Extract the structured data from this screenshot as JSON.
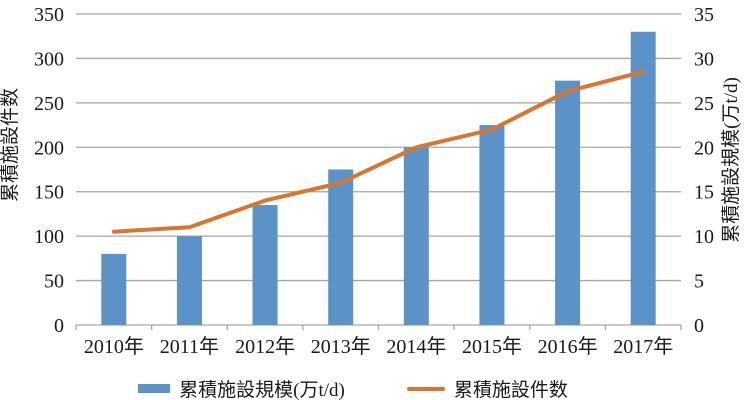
{
  "chart_data": {
    "type": "combo-bar-line",
    "title": "",
    "categories": [
      "2010年",
      "2011年",
      "2012年",
      "2013年",
      "2014年",
      "2015年",
      "2016年",
      "2017年"
    ],
    "series": [
      {
        "name": "累積施設規模(万t/d)",
        "type": "bar",
        "axis": "right",
        "color": "#5B93C9",
        "values": [
          8,
          10,
          13.5,
          17.5,
          20,
          22.5,
          27.5,
          33
        ]
      },
      {
        "name": "累積施設件数",
        "type": "line",
        "axis": "left",
        "color": "#D9752F",
        "values": [
          105,
          110,
          140,
          160,
          200,
          220,
          263,
          285
        ]
      }
    ],
    "left_axis": {
      "label": "累積施設件数",
      "min": 0,
      "max": 350,
      "step": 50,
      "ticks": [
        0,
        50,
        100,
        150,
        200,
        250,
        300,
        350
      ]
    },
    "right_axis": {
      "label": "累積施設規模(万t/d)",
      "min": 0,
      "max": 35,
      "step": 5,
      "ticks": [
        0,
        5,
        10,
        15,
        20,
        25,
        30,
        35
      ]
    },
    "grid": true,
    "legend_position": "bottom"
  },
  "colors": {
    "bar": "#5B93C9",
    "line": "#D9752F",
    "grid": "#A6A6A6",
    "axis": "#A6A6A6",
    "text": "#1A1A1A",
    "background": "#FFFFFF"
  }
}
